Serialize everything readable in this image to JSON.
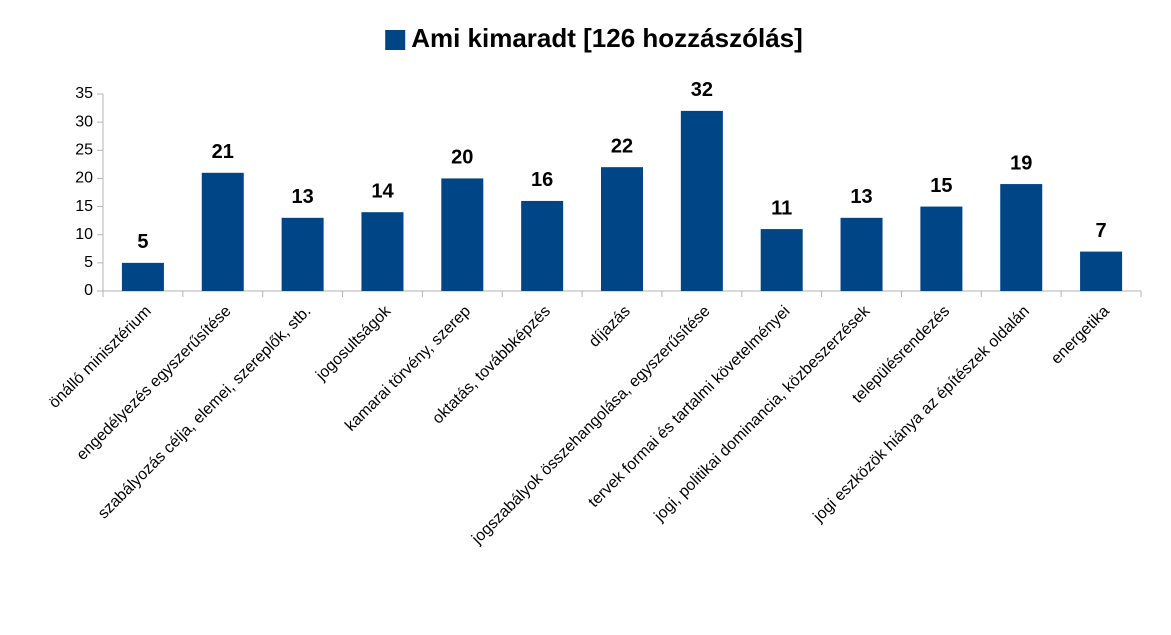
{
  "chart_data": {
    "type": "bar",
    "legend": "top",
    "categories": [
      "önálló minisztérium",
      "engedélyezés egyszerűsítése",
      "szabályozás célja, elemei, szereplők, stb.",
      "jogosultságok",
      "kamarai törvény, szerep",
      "oktatás, továbbképzés",
      "díjazás",
      "jogszabályok összehangolása, egyszerűsítése",
      "tervek formai és tartalmi követelményei",
      "jogi, politikai dominancia, közbeszerzések",
      "településrendezés",
      "jogi eszközök hiánya az építészek oldalán",
      "energetika"
    ],
    "series": [
      {
        "name": "Ami kimaradt [126 hozzászólás]",
        "color": "#004586",
        "values": [
          5,
          21,
          13,
          14,
          20,
          16,
          22,
          32,
          11,
          13,
          15,
          19,
          7
        ]
      }
    ],
    "ylim": [
      0,
      35
    ],
    "yticks": [
      0,
      5,
      10,
      15,
      20,
      25,
      30,
      35
    ],
    "grid": false
  }
}
